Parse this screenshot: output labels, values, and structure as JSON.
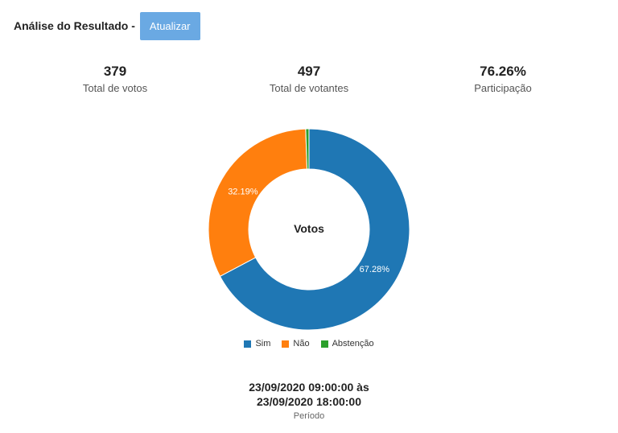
{
  "header": {
    "title": "Análise do Resultado -",
    "refresh_label": "Atualizar"
  },
  "stats": {
    "votes": {
      "value": "379",
      "label": "Total de votos"
    },
    "voters": {
      "value": "497",
      "label": "Total de votantes"
    },
    "participation": {
      "value": "76.26%",
      "label": "Participação"
    }
  },
  "period": {
    "start": "23/09/2020 09:00:00 às",
    "end": "23/09/2020 18:00:00",
    "label": "Período"
  },
  "chart_data": {
    "type": "pie",
    "variant": "donut",
    "center_label": "Votos",
    "legend_position": "bottom",
    "slices": [
      {
        "name": "Sim",
        "value": 67.28,
        "label": "67.28%",
        "color": "#1f77b4"
      },
      {
        "name": "Não",
        "value": 32.19,
        "label": "32.19%",
        "color": "#ff7f0e"
      },
      {
        "name": "Abstenção",
        "value": 0.53,
        "label": "",
        "color": "#2ca02c"
      }
    ]
  }
}
